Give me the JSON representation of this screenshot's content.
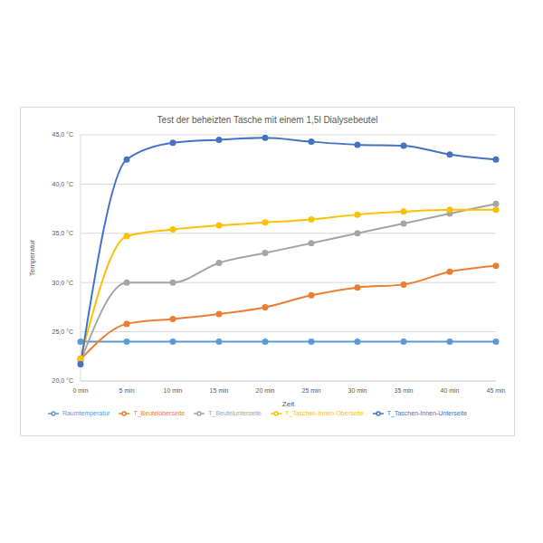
{
  "chart_data": {
    "type": "line",
    "title": "Test der beheizten Tasche mit einem 1,5l Dialysebeutel",
    "x_label": "Zeit",
    "y_label": "Temperatur",
    "categories": [
      "0 min",
      "5 min",
      "10 min",
      "15 min",
      "20 min",
      "25 min",
      "30 min",
      "35 min",
      "40 min",
      "45 min"
    ],
    "series": [
      {
        "name": "Raumtemperatur",
        "color": "#5b9bd5",
        "values": [
          24.0,
          24.0,
          24.0,
          24.0,
          24.0,
          24.0,
          24.0,
          24.0,
          24.0,
          24.0
        ]
      },
      {
        "name": "T_Beuteloberseite",
        "color": "#ed7d31",
        "values": [
          22.2,
          25.8,
          26.3,
          26.8,
          27.5,
          28.7,
          29.5,
          29.8,
          31.1,
          31.7
        ]
      },
      {
        "name": "T_Beutelunterseite",
        "color": "#a5a5a5",
        "values": [
          22.0,
          30.0,
          30.0,
          32.0,
          33.0,
          34.0,
          35.0,
          36.0,
          37.0,
          38.0
        ]
      },
      {
        "name": "T_Taschen-Innen-Oberseite",
        "color": "#ffc000",
        "values": [
          22.3,
          34.7,
          35.4,
          35.8,
          36.1,
          36.4,
          36.9,
          37.2,
          37.4,
          37.4
        ]
      },
      {
        "name": "T_Taschen-Innen-Unterseite",
        "color": "#4472c4",
        "values": [
          21.7,
          42.5,
          44.2,
          44.5,
          44.7,
          44.3,
          44.0,
          43.9,
          43.0,
          42.5
        ]
      }
    ],
    "ylim": [
      20,
      45
    ],
    "yticks": [
      {
        "value": 20,
        "label": "20,0 °C"
      },
      {
        "value": 25,
        "label": "25,0 °C"
      },
      {
        "value": 30,
        "label": "30,0 °C"
      },
      {
        "value": 35,
        "label": "35,0 °C"
      },
      {
        "value": 40,
        "label": "40,0 °C"
      },
      {
        "value": 45,
        "label": "45,0 °C"
      }
    ],
    "grid": true,
    "legend": "bottom",
    "marker": "circle",
    "line_style": "smooth"
  }
}
